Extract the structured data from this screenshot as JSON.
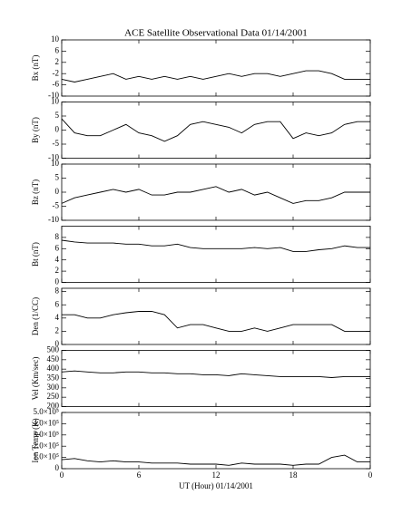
{
  "title": "ACE Satellite Observational Data  01/14/2001",
  "xlabel": "UT (Hour)  01/14/2001",
  "xlim": [
    0,
    24
  ],
  "xticks": [
    0,
    6,
    12,
    18,
    {
      "value": 24,
      "label": "0"
    }
  ],
  "chart_data": [
    {
      "type": "line",
      "ylabel": "Bx (nT)",
      "color": "#000000",
      "ylim": [
        -10,
        10
      ],
      "yticks": [
        -10,
        -6,
        -2,
        2,
        6,
        10
      ],
      "x": [
        0,
        1,
        2,
        3,
        4,
        5,
        6,
        7,
        8,
        9,
        10,
        11,
        12,
        13,
        14,
        15,
        16,
        17,
        18,
        19,
        20,
        21,
        22,
        23,
        24
      ],
      "values": [
        -4,
        -5,
        -4,
        -3,
        -2,
        -4,
        -3,
        -4,
        -3,
        -4,
        -3,
        -4,
        -3,
        -2,
        -3,
        -2,
        -2,
        -3,
        -2,
        -1,
        -1,
        -2,
        -4,
        -4,
        -4
      ]
    },
    {
      "type": "line",
      "ylabel": "By (nT)",
      "color": "#000000",
      "ylim": [
        -10,
        10
      ],
      "yticks": [
        -10,
        -5,
        0,
        5,
        10
      ],
      "x": [
        0,
        1,
        2,
        3,
        4,
        5,
        6,
        7,
        8,
        9,
        10,
        11,
        12,
        13,
        14,
        15,
        16,
        17,
        18,
        19,
        20,
        21,
        22,
        23,
        24
      ],
      "values": [
        4,
        -1,
        -2,
        -2,
        0,
        2,
        -1,
        -2,
        -4,
        -2,
        2,
        3,
        2,
        1,
        -1,
        2,
        3,
        3,
        -3,
        -1,
        -2,
        -1,
        2,
        3,
        3
      ]
    },
    {
      "type": "line",
      "ylabel": "Bz (nT)",
      "color": "#000000",
      "ylim": [
        -10,
        10
      ],
      "yticks": [
        -10,
        -5,
        0,
        5,
        10
      ],
      "x": [
        0,
        1,
        2,
        3,
        4,
        5,
        6,
        7,
        8,
        9,
        10,
        11,
        12,
        13,
        14,
        15,
        16,
        17,
        18,
        19,
        20,
        21,
        22,
        23,
        24
      ],
      "values": [
        -4,
        -2,
        -1,
        0,
        1,
        0,
        1,
        -1,
        -1,
        0,
        0,
        1,
        2,
        0,
        1,
        -1,
        0,
        -2,
        -4,
        -3,
        -3,
        -2,
        0,
        0,
        0
      ]
    },
    {
      "type": "line",
      "ylabel": "Bt (nT)",
      "color": "#000000",
      "ylim": [
        0,
        10
      ],
      "yticks": [
        0,
        2,
        4,
        6,
        8
      ],
      "x": [
        0,
        1,
        2,
        3,
        4,
        5,
        6,
        7,
        8,
        9,
        10,
        11,
        12,
        13,
        14,
        15,
        16,
        17,
        18,
        19,
        20,
        21,
        22,
        23,
        24
      ],
      "values": [
        7.5,
        7.2,
        7,
        7,
        7,
        6.8,
        6.8,
        6.5,
        6.5,
        6.8,
        6.2,
        6,
        6,
        6,
        6,
        6.2,
        6,
        6.2,
        5.5,
        5.5,
        5.8,
        6,
        6.5,
        6.2,
        6.2
      ]
    },
    {
      "type": "line",
      "ylabel": "Den (1/CC)",
      "color": "#000000",
      "ylim": [
        0,
        8.5
      ],
      "yticks": [
        0,
        2,
        4,
        6,
        8
      ],
      "x": [
        0,
        1,
        2,
        3,
        4,
        5,
        6,
        7,
        8,
        9,
        10,
        11,
        12,
        13,
        14,
        15,
        16,
        17,
        18,
        19,
        20,
        21,
        22,
        23,
        24
      ],
      "values": [
        4.5,
        4.5,
        4,
        4,
        4.5,
        4.8,
        5,
        5,
        4.5,
        2.5,
        3,
        3,
        2.5,
        2,
        2,
        2.5,
        2,
        2.5,
        3,
        3,
        3,
        3,
        2,
        2,
        2
      ]
    },
    {
      "type": "line",
      "ylabel": "Vel (Km/sec)",
      "color": "#000000",
      "ylim": [
        200,
        500
      ],
      "yticks": [
        200,
        250,
        300,
        350,
        400,
        450,
        500
      ],
      "x": [
        0,
        1,
        2,
        3,
        4,
        5,
        6,
        7,
        8,
        9,
        10,
        11,
        12,
        13,
        14,
        15,
        16,
        17,
        18,
        19,
        20,
        21,
        22,
        23,
        24
      ],
      "values": [
        385,
        390,
        385,
        380,
        380,
        385,
        385,
        380,
        380,
        375,
        375,
        370,
        370,
        365,
        375,
        370,
        365,
        360,
        360,
        360,
        360,
        355,
        360,
        360,
        360
      ]
    },
    {
      "type": "line",
      "ylabel": "Ion Temp (K)",
      "color": "#000000",
      "ylim": [
        0,
        500000
      ],
      "yticks": [
        0,
        {
          "value": 100000,
          "label": "1.0×10⁵"
        },
        {
          "value": 200000,
          "label": "2.0×10⁵"
        },
        {
          "value": 300000,
          "label": "3.0×10⁵"
        },
        {
          "value": 400000,
          "label": "4.0×10⁵"
        },
        {
          "value": 500000,
          "label": "5.0×10⁵"
        }
      ],
      "x": [
        0,
        1,
        2,
        3,
        4,
        5,
        6,
        7,
        8,
        9,
        10,
        11,
        12,
        13,
        14,
        15,
        16,
        17,
        18,
        19,
        20,
        21,
        22,
        23,
        24
      ],
      "values": [
        80000,
        90000,
        70000,
        60000,
        70000,
        60000,
        60000,
        50000,
        50000,
        50000,
        40000,
        40000,
        40000,
        30000,
        50000,
        40000,
        40000,
        40000,
        30000,
        40000,
        40000,
        100000,
        120000,
        60000,
        60000
      ]
    }
  ]
}
